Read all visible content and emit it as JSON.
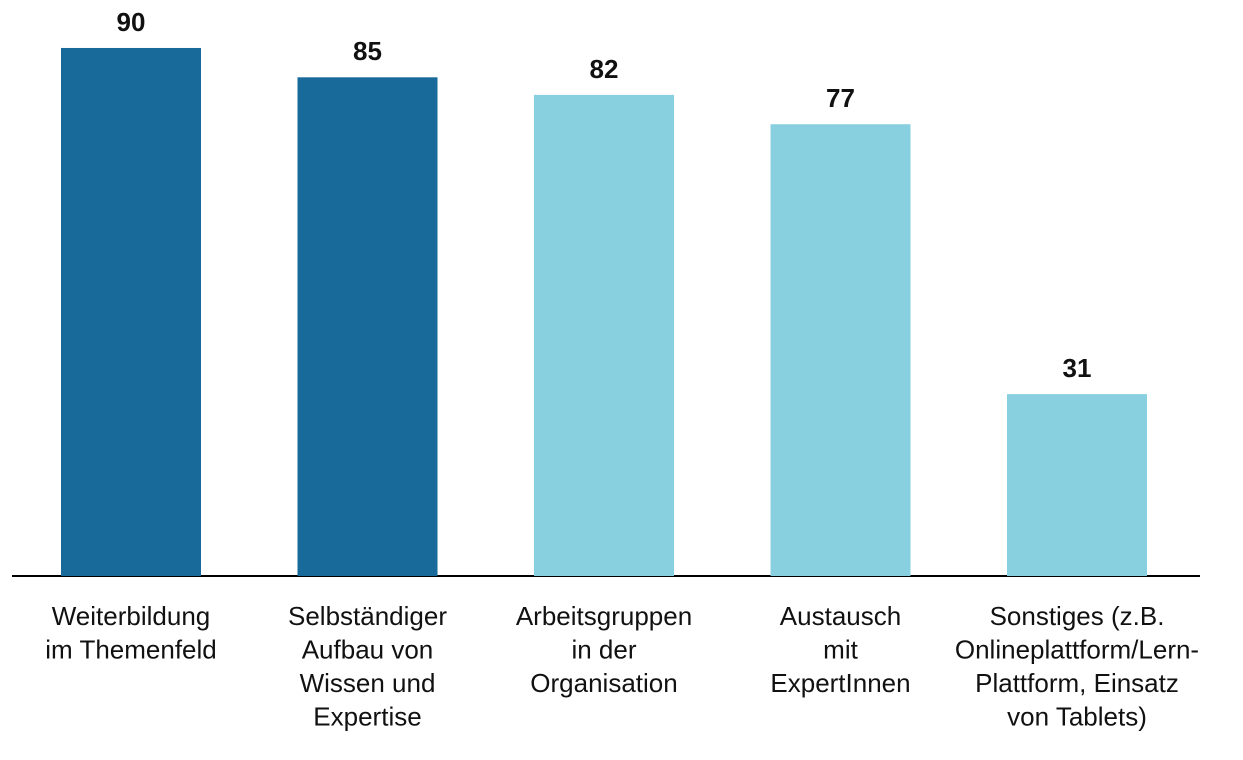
{
  "chart_data": {
    "type": "bar",
    "categories": [
      [
        "Weiterbildung",
        "im Themenfeld"
      ],
      [
        "Selbständiger",
        "Aufbau von",
        "Wissen und",
        "Expertise"
      ],
      [
        "Arbeitsgruppen",
        "in der",
        "Organisation"
      ],
      [
        "Austausch",
        "mit",
        "ExpertInnen"
      ],
      [
        "Sonstiges (z.B.",
        "Onlineplattform/Lern-",
        "Plattform, Einsatz",
        "von Tablets)"
      ]
    ],
    "values": [
      90,
      85,
      82,
      77,
      31
    ],
    "colors": [
      "#176a9a",
      "#176a9a",
      "#88cfe0",
      "#88cfe0",
      "#88cfe0"
    ]
  }
}
